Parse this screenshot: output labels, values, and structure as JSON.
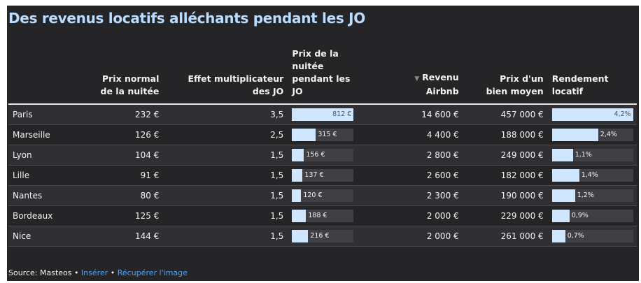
{
  "title": "Des revenus locatifs alléchants pendant les JO",
  "columns": {
    "city": "",
    "normal_price": [
      "Prix normal",
      "de la nuitée"
    ],
    "multiplier": [
      "Effet multiplicateur",
      "des JO"
    ],
    "jo_price": [
      "Prix de la",
      "nuitée",
      "pendant les",
      "JO"
    ],
    "revenue": [
      "Revenu",
      "Airbnb"
    ],
    "property_price": [
      "Prix d'un",
      "bien moyen"
    ],
    "yield": [
      "Rendement",
      "locatif"
    ],
    "sort_icon": "▼"
  },
  "chart_data": {
    "type": "table",
    "title": "Des revenus locatifs alléchants pendant les JO",
    "sorted_by": "Revenu Airbnb",
    "sort_order": "descending",
    "rows": [
      {
        "city": "Paris",
        "normal_price": "232 €",
        "multiplier": "3,5",
        "jo_price": 812,
        "jo_price_label": "812 €",
        "revenue": "14 600 €",
        "property_price": "457 000 €",
        "yield": 4.2,
        "yield_label": "4,2%"
      },
      {
        "city": "Marseille",
        "normal_price": "126 €",
        "multiplier": "2,5",
        "jo_price": 315,
        "jo_price_label": "315 €",
        "revenue": "4 400 €",
        "property_price": "188 000 €",
        "yield": 2.4,
        "yield_label": "2,4%"
      },
      {
        "city": "Lyon",
        "normal_price": "104 €",
        "multiplier": "1,5",
        "jo_price": 156,
        "jo_price_label": "156 €",
        "revenue": "2 800 €",
        "property_price": "249 000 €",
        "yield": 1.1,
        "yield_label": "1,1%"
      },
      {
        "city": "Lille",
        "normal_price": "91 €",
        "multiplier": "1,5",
        "jo_price": 137,
        "jo_price_label": "137 €",
        "revenue": "2 600 €",
        "property_price": "182 000 €",
        "yield": 1.4,
        "yield_label": "1,4%"
      },
      {
        "city": "Nantes",
        "normal_price": "80 €",
        "multiplier": "1,5",
        "jo_price": 120,
        "jo_price_label": "120 €",
        "revenue": "2 300 €",
        "property_price": "190 000 €",
        "yield": 1.2,
        "yield_label": "1,2%"
      },
      {
        "city": "Bordeaux",
        "normal_price": "125 €",
        "multiplier": "1,5",
        "jo_price": 188,
        "jo_price_label": "188 €",
        "revenue": "2 000 €",
        "property_price": "229 000 €",
        "yield": 0.9,
        "yield_label": "0,9%"
      },
      {
        "city": "Nice",
        "normal_price": "144 €",
        "multiplier": "1,5",
        "jo_price": 216,
        "jo_price_label": "216 €",
        "revenue": "2 000 €",
        "property_price": "261 000 €",
        "yield": 0.7,
        "yield_label": "0,7%"
      }
    ],
    "jo_price_max": 812,
    "yield_max": 4.2
  },
  "footer": {
    "source": "Source: Masteos",
    "sep": " • ",
    "insert": "Insérer",
    "image": "Récupérer l'image"
  },
  "colors": {
    "background": "#252528",
    "title": "#b9dcff",
    "bar_fill": "#cfe6ff",
    "bar_track": "#3f3f44",
    "link": "#4fa3f7"
  }
}
